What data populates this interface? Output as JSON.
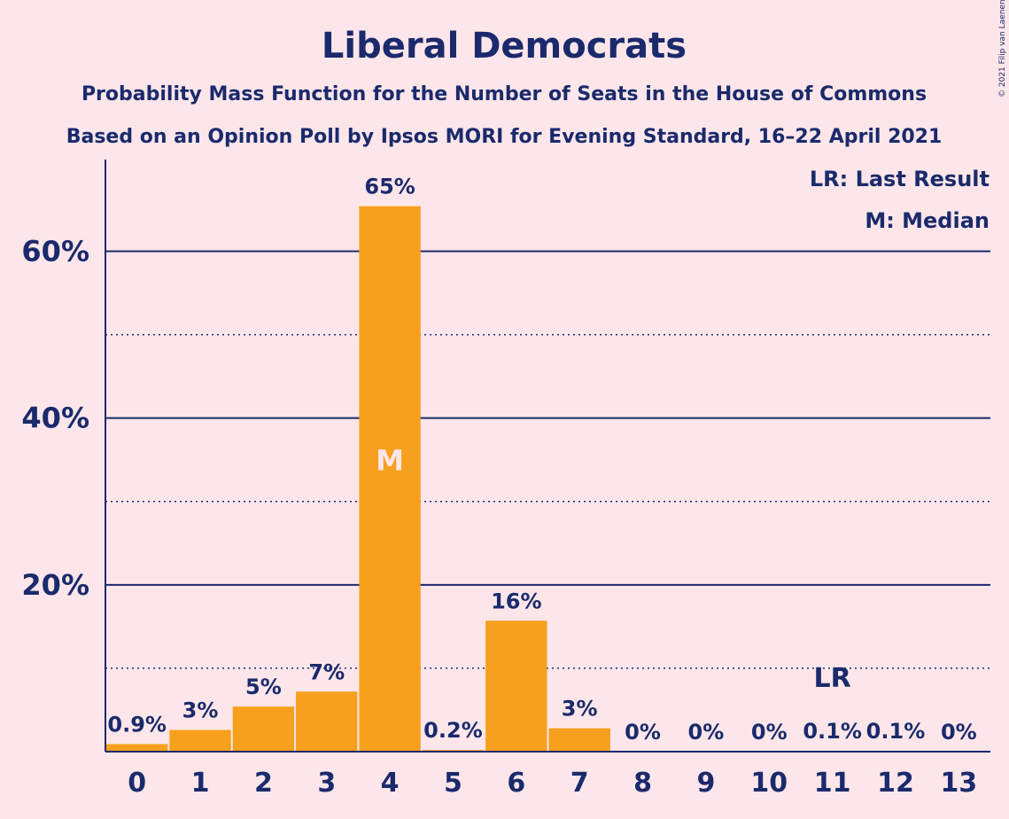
{
  "chart_data": {
    "type": "bar",
    "title": "Liberal Democrats",
    "subtitle1": "Probability Mass Function for the Number of Seats in the House of Commons",
    "subtitle2": "Based on an Opinion Poll by Ipsos MORI for Evening Standard, 16–22 April 2021",
    "copyright": "© 2021 Filip van Laenen",
    "categories": [
      "0",
      "1",
      "2",
      "3",
      "4",
      "5",
      "6",
      "7",
      "8",
      "9",
      "10",
      "11",
      "12",
      "13"
    ],
    "values": [
      0.9,
      2.6,
      5.4,
      7.2,
      65.4,
      0.2,
      15.7,
      2.8,
      0,
      0,
      0,
      0.1,
      0.1,
      0
    ],
    "value_labels": [
      "0.9%",
      "3%",
      "5%",
      "7%",
      "65%",
      "0.2%",
      "16%",
      "3%",
      "0%",
      "0%",
      "0%",
      "0.1%",
      "0.1%",
      "0%"
    ],
    "ylim": [
      0,
      71
    ],
    "yticks": [
      20,
      40,
      60
    ],
    "ytick_labels": [
      "20%",
      "40%",
      "60%"
    ],
    "minor_gridlines": [
      10,
      30,
      50
    ],
    "median_seat": "4",
    "median_label": "M",
    "last_result_seat": "11",
    "last_result_label": "LR",
    "legend": [
      "LR: Last Result",
      "M: Median"
    ],
    "colors": {
      "bar": "#f7a01d",
      "text": "#1a2a6c",
      "background": "#fde6ea"
    }
  }
}
